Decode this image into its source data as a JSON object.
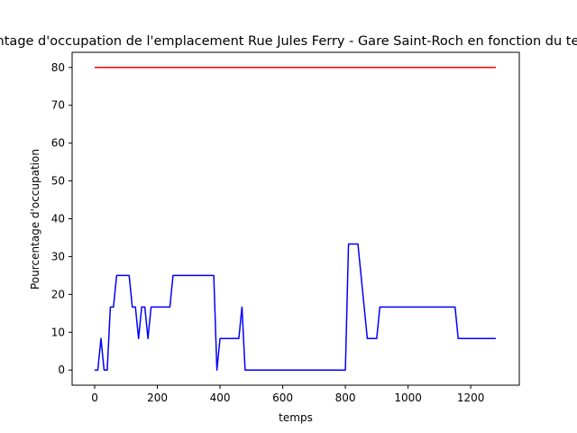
{
  "chart_data": {
    "type": "line",
    "title": "Pourcentage d'occupation de l'emplacement Rue Jules Ferry - Gare Saint-Roch en fonction du temps",
    "xlabel": "temps",
    "ylabel": "Pourcentage d'occupation",
    "xlim": [
      -72,
      1355
    ],
    "ylim": [
      -4,
      84
    ],
    "xticks": [
      0,
      200,
      400,
      600,
      800,
      1000,
      1200
    ],
    "yticks": [
      0,
      10,
      20,
      30,
      40,
      50,
      60,
      70,
      80
    ],
    "grid": false,
    "series": [
      {
        "color": "#0000ff",
        "x": [
          0,
          10,
          20,
          30,
          40,
          50,
          60,
          70,
          110,
          120,
          130,
          140,
          150,
          160,
          170,
          180,
          240,
          250,
          380,
          390,
          400,
          460,
          470,
          480,
          800,
          810,
          840,
          870,
          900,
          910,
          1150,
          1160,
          1280
        ],
        "y": [
          0,
          0,
          8.33,
          0,
          0,
          16.67,
          16.67,
          25,
          25,
          16.67,
          16.67,
          8.33,
          16.67,
          16.67,
          8.33,
          16.67,
          16.67,
          25,
          25,
          0,
          8.33,
          8.33,
          16.67,
          0,
          0,
          33.33,
          33.33,
          8.33,
          8.33,
          16.67,
          16.67,
          8.33,
          8.33
        ]
      },
      {
        "color": "#ff0000",
        "x": [
          0,
          1280
        ],
        "y": [
          80,
          80
        ]
      }
    ]
  }
}
